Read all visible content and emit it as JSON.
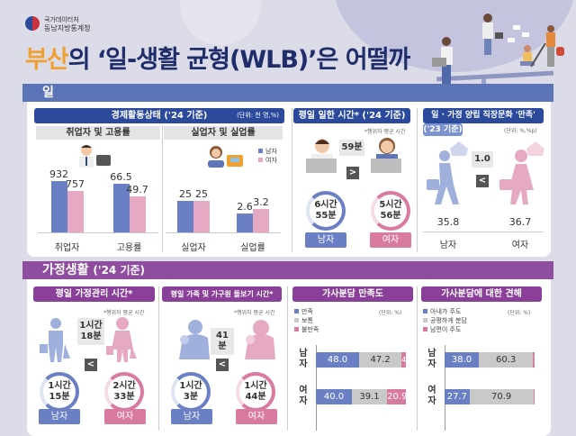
{
  "header": {
    "org_line1": "국가데이터처",
    "org_line2": "동남지방통계청",
    "title_highlight": "부산",
    "title_rest": "의 ‘일-생활 균형(WLB)’은 어떨까"
  },
  "colors": {
    "male": "#6b80c4",
    "female": "#e6a9c4",
    "work_section": "#5b74b8",
    "family_section": "#8e4d9e",
    "accent": "#f0a030",
    "neutral": "#c9c9c9"
  },
  "work": {
    "section_title": "일",
    "economic": {
      "title": "경제활동상태 ('24 기준)",
      "unit": "(단위: 천 명,%)",
      "employment_title": "취업자 및 고용률",
      "unemployment_title": "실업자 및 실업률",
      "legend": {
        "male": "남자",
        "female": "여자"
      }
    },
    "hours": {
      "title": "평일 일한 시간* ('24 기준)",
      "note": "*행위자 평균 시간",
      "diff": "59분",
      "compare": ">",
      "male_time_1": "6시간",
      "male_time_2": "55분",
      "female_time_1": "5시간",
      "female_time_2": "56분",
      "male": "남자",
      "female": "여자"
    },
    "culture": {
      "title": "일 · 가정 양립 직장문화 '만족'",
      "year": "('23 기준)",
      "unit": "(단위: %,%p)",
      "diff": "1.0",
      "compare": "<",
      "male_value": "35.8",
      "female_value": "36.7",
      "male": "남자",
      "female": "여자"
    }
  },
  "family": {
    "section_title": "가정생활",
    "section_year": "('24 기준)",
    "housework": {
      "title": "평일 가정관리 시간*",
      "note": "*행위자 평균 시간",
      "diff_1": "1시간",
      "diff_2": "18분",
      "compare": "<",
      "male_time_1": "1시간",
      "male_time_2": "15분",
      "female_time_1": "2시간",
      "female_time_2": "33분",
      "male": "남자",
      "female": "여자"
    },
    "care": {
      "title": "평일 가족 및 가구원 돌보기 시간*",
      "note": "*행위자 평균 시간",
      "diff": "41분",
      "compare": "<",
      "male_time_1": "1시간",
      "male_time_2": "3분",
      "female_time_1": "1시간",
      "female_time_2": "44분",
      "male": "남자",
      "female": "여자"
    }
  },
  "chart_data": [
    {
      "type": "bar",
      "title": "취업자 및 고용률",
      "categories": [
        "취업자",
        "고용률"
      ],
      "series": [
        {
          "name": "남자",
          "values": [
            932,
            66.5
          ]
        },
        {
          "name": "여자",
          "values": [
            757,
            49.7
          ]
        }
      ]
    },
    {
      "type": "bar",
      "title": "실업자 및 실업률",
      "categories": [
        "실업자",
        "실업률"
      ],
      "series": [
        {
          "name": "남자",
          "values": [
            25,
            2.6
          ]
        },
        {
          "name": "여자",
          "values": [
            25,
            3.2
          ]
        }
      ]
    },
    {
      "type": "bar",
      "stacked": true,
      "orientation": "horizontal",
      "title": "가사분담 만족도",
      "unit": "(단위: %)",
      "categories": [
        "남자",
        "여자"
      ],
      "category_labels": [
        [
          "남",
          "자"
        ],
        [
          "여",
          "자"
        ]
      ],
      "series": [
        {
          "name": "만족",
          "values": [
            48.0,
            40.0
          ]
        },
        {
          "name": "보통",
          "values": [
            47.2,
            39.1
          ]
        },
        {
          "name": "불만족",
          "values": [
            4.8,
            20.9
          ]
        }
      ]
    },
    {
      "type": "bar",
      "stacked": true,
      "orientation": "horizontal",
      "title": "가사분담에 대한 견해",
      "unit": "(단위: %)",
      "categories": [
        "남자",
        "여자"
      ],
      "category_labels": [
        [
          "남",
          "자"
        ],
        [
          "여",
          "자"
        ]
      ],
      "series": [
        {
          "name": "아내가 주도",
          "values": [
            38.0,
            27.7
          ]
        },
        {
          "name": "공평하게 분담",
          "values": [
            60.3,
            70.9
          ]
        },
        {
          "name": "남편이 주도",
          "values": [
            1.7,
            1.4
          ]
        }
      ]
    }
  ]
}
